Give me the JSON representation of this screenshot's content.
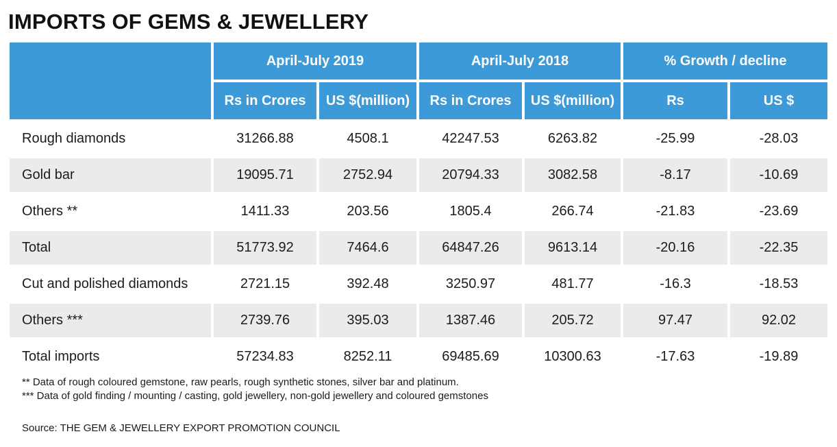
{
  "title": "IMPORTS OF GEMS & JEWELLERY",
  "groups": [
    "April-July 2019",
    "April-July 2018",
    "% Growth / decline"
  ],
  "subheaders": [
    "Rs in Crores",
    "US $(million)",
    "Rs in Crores",
    "US $(million)",
    "Rs",
    "US $"
  ],
  "rows": [
    {
      "label": "Rough diamonds",
      "cells": [
        "31266.88",
        "4508.1",
        "42247.53",
        "6263.82",
        "-25.99",
        "-28.03"
      ]
    },
    {
      "label": "Gold bar",
      "cells": [
        "19095.71",
        "2752.94",
        "20794.33",
        "3082.58",
        "-8.17",
        "-10.69"
      ]
    },
    {
      "label": "Others **",
      "cells": [
        "1411.33",
        "203.56",
        "1805.4",
        "266.74",
        "-21.83",
        "-23.69"
      ]
    },
    {
      "label": "Total",
      "cells": [
        "51773.92",
        "7464.6",
        "64847.26",
        "9613.14",
        "-20.16",
        "-22.35"
      ]
    },
    {
      "label": "Cut and polished diamonds",
      "cells": [
        "2721.15",
        "392.48",
        "3250.97",
        "481.77",
        "-16.3",
        "-18.53"
      ]
    },
    {
      "label": "Others ***",
      "cells": [
        "2739.76",
        "395.03",
        "1387.46",
        "205.72",
        "97.47",
        "92.02"
      ]
    },
    {
      "label": "Total imports",
      "cells": [
        "57234.83",
        "8252.11",
        "69485.69",
        "10300.63",
        "-17.63",
        "-19.89"
      ]
    }
  ],
  "footnotes": [
    "** Data of rough coloured gemstone, raw pearls, rough synthetic stones, silver bar and platinum.",
    "*** Data of gold finding / mounting / casting, gold jewellery, non-gold jewellery and coloured gemstones"
  ],
  "source": "Source: THE GEM & JEWELLERY EXPORT PROMOTION COUNCIL",
  "colors": {
    "header_bg": "#3d9ad8",
    "header_text": "#ffffff",
    "shade_row": "#ebebeb"
  }
}
